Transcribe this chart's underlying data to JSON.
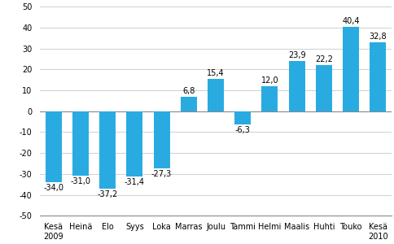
{
  "values": [
    -34.0,
    -31.0,
    -37.2,
    -31.4,
    -27.3,
    6.8,
    15.4,
    -6.3,
    12.0,
    23.9,
    22.2,
    40.4,
    32.8
  ],
  "bar_color": "#29abe2",
  "ylim": [
    -50,
    50
  ],
  "yticks": [
    -50,
    -40,
    -30,
    -20,
    -10,
    0,
    10,
    20,
    30,
    40,
    50
  ],
  "grid_color": "#c8c8c8",
  "background_color": "#ffffff",
  "label_fontsize": 7.0,
  "value_fontsize": 7.0,
  "tick_labels": [
    "Kesä\n2009",
    "Heinä",
    "Elo",
    "Syys",
    "Loka",
    "Marras",
    "Joulu",
    "Tammi",
    "Helmi",
    "Maalis",
    "Huhti",
    "Touko",
    "Kesä\n2010"
  ],
  "bar_width": 0.6
}
